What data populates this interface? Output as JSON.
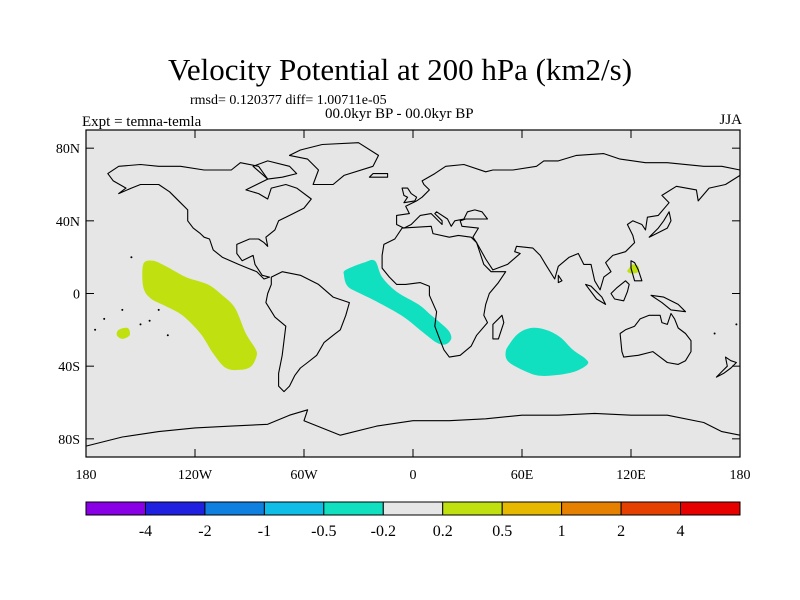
{
  "title": "Velocity Potential at 200 hPa (km2/s)",
  "subtitle": "rmsd= 0.120377 diff= 1.00711e-05",
  "experiment": "Expt = temna-temla",
  "period": "00.0kyr BP - 00.0kyr BP",
  "season": "JJA",
  "map": {
    "projection": "cylindrical-equidistant",
    "lon_range": [
      -180,
      180
    ],
    "lat_range": [
      -90,
      90
    ],
    "background_color": "#e6e6e6",
    "coastline_color": "#000000",
    "x_ticks": [
      {
        "lon": -180,
        "label": "180"
      },
      {
        "lon": -120,
        "label": "120W"
      },
      {
        "lon": -60,
        "label": "60W"
      },
      {
        "lon": 0,
        "label": "0"
      },
      {
        "lon": 60,
        "label": "60E"
      },
      {
        "lon": 120,
        "label": "120E"
      },
      {
        "lon": 180,
        "label": "180"
      }
    ],
    "y_ticks": [
      {
        "lat": 80,
        "label": "80N"
      },
      {
        "lat": 40,
        "label": "40N"
      },
      {
        "lat": 0,
        "label": "0"
      },
      {
        "lat": -40,
        "label": "40S"
      },
      {
        "lat": -80,
        "label": "80S"
      }
    ]
  },
  "chart_data": {
    "type": "heatmap",
    "title": "Velocity Potential at 200 hPa (km2/s)",
    "variable": "Velocity Potential at 200 hPa",
    "units": "km2/s",
    "levels": [
      "-4",
      "-2",
      "-1",
      "-0.5",
      "-0.2",
      "0.2",
      "0.5",
      "1",
      "2",
      "4"
    ],
    "colors": [
      "#8a00e6",
      "#2020e0",
      "#0f80e0",
      "#10bde6",
      "#10e0c0",
      "#e6e6e6",
      "#c0e010",
      "#e6b800",
      "#e68000",
      "#e64000",
      "#e60000"
    ],
    "regions": [
      {
        "name": "east-pacific-positive",
        "range": "0.2 to 0.5",
        "color": "#c0e010",
        "outline": [
          [
            -148,
            17
          ],
          [
            -143,
            18
          ],
          [
            -136,
            15
          ],
          [
            -125,
            9
          ],
          [
            -113,
            5
          ],
          [
            -105,
            -1
          ],
          [
            -98,
            -8
          ],
          [
            -92,
            -22
          ],
          [
            -87,
            -30
          ],
          [
            -86,
            -34
          ],
          [
            -89,
            -40
          ],
          [
            -95,
            -42
          ],
          [
            -103,
            -41
          ],
          [
            -110,
            -33
          ],
          [
            -117,
            -22
          ],
          [
            -127,
            -12
          ],
          [
            -136,
            -7
          ],
          [
            -144,
            -3
          ],
          [
            -148,
            2
          ],
          [
            -149,
            10
          ]
        ]
      },
      {
        "name": "central-pacific-positive",
        "range": "0.2 to 0.5",
        "color": "#c0e010",
        "outline": [
          [
            -162,
            -20
          ],
          [
            -157,
            -19
          ],
          [
            -156,
            -23
          ],
          [
            -160,
            -25
          ],
          [
            -163,
            -23
          ]
        ]
      },
      {
        "name": "west-pacific-positive",
        "range": "0.2 to 0.5",
        "color": "#c0e010",
        "outline": [
          [
            119,
            14
          ],
          [
            121,
            16
          ],
          [
            124,
            15
          ],
          [
            124,
            12
          ],
          [
            121,
            11
          ],
          [
            118,
            12
          ]
        ]
      },
      {
        "name": "atlantic-negative",
        "range": "-0.5 to -0.2",
        "color": "#10e0c0",
        "outline": [
          [
            -37,
            13
          ],
          [
            -27,
            17
          ],
          [
            -21,
            18
          ],
          [
            -17,
            9
          ],
          [
            -9,
            1
          ],
          [
            3,
            -6
          ],
          [
            10,
            -12
          ],
          [
            16,
            -17
          ],
          [
            20,
            -21
          ],
          [
            21,
            -25
          ],
          [
            18,
            -28
          ],
          [
            13,
            -27
          ],
          [
            5,
            -21
          ],
          [
            -5,
            -13
          ],
          [
            -19,
            -5
          ],
          [
            -29,
            0
          ],
          [
            -36,
            4
          ],
          [
            -38,
            10
          ]
        ]
      },
      {
        "name": "indian-ocean-negative",
        "range": "-0.5 to -0.2",
        "color": "#10e0c0",
        "outline": [
          [
            53,
            -28
          ],
          [
            58,
            -22
          ],
          [
            65,
            -19
          ],
          [
            73,
            -20
          ],
          [
            81,
            -24
          ],
          [
            88,
            -31
          ],
          [
            95,
            -36
          ],
          [
            96,
            -39
          ],
          [
            89,
            -43
          ],
          [
            78,
            -45
          ],
          [
            68,
            -45
          ],
          [
            58,
            -41
          ],
          [
            52,
            -37
          ],
          [
            51,
            -32
          ]
        ]
      }
    ],
    "colorbar_labels": [
      "-4",
      "-2",
      "-1",
      "-0.5",
      "-0.2",
      "0.2",
      "0.5",
      "1",
      "2",
      "4"
    ]
  }
}
